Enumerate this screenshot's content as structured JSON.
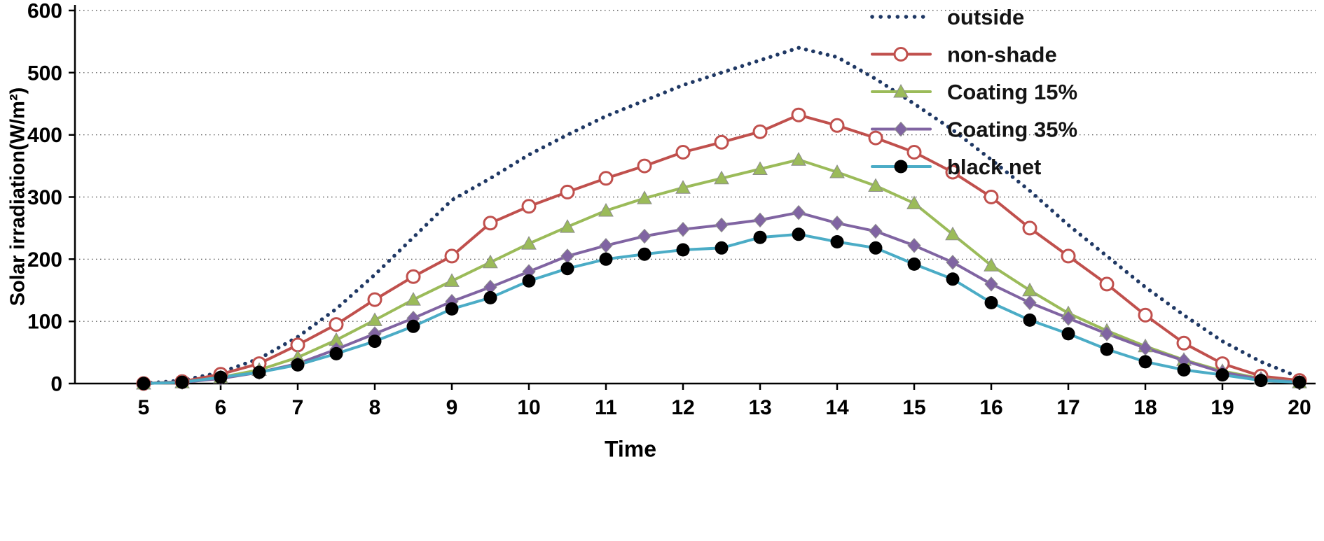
{
  "chart_data": {
    "type": "line",
    "title": "",
    "xlabel": "Time",
    "ylabel": "Solar irradiation(W/m²)",
    "xlim": [
      5,
      20
    ],
    "ylim": [
      0,
      600
    ],
    "x_ticks": [
      5,
      6,
      7,
      8,
      9,
      10,
      11,
      12,
      13,
      14,
      15,
      16,
      17,
      18,
      19,
      20
    ],
    "y_ticks": [
      0,
      100,
      200,
      300,
      400,
      500,
      600
    ],
    "grid": "horizontal-dotted",
    "legend_position": "top-right",
    "x": [
      5,
      5.5,
      6,
      6.5,
      7,
      7.5,
      8,
      8.5,
      9,
      9.5,
      10,
      10.5,
      11,
      11.5,
      12,
      12.5,
      13,
      13.5,
      14,
      14.5,
      15,
      15.5,
      16,
      16.5,
      17,
      17.5,
      18,
      18.5,
      19,
      19.5,
      20
    ],
    "series": [
      {
        "name": "outside",
        "slug": "outside",
        "color": "#1F3864",
        "line_style": "dotted",
        "marker": "none",
        "values": [
          0,
          5,
          18,
          40,
          75,
          120,
          175,
          235,
          295,
          330,
          368,
          400,
          430,
          455,
          480,
          500,
          520,
          540,
          525,
          490,
          450,
          408,
          360,
          310,
          255,
          205,
          155,
          110,
          68,
          35,
          10
        ]
      },
      {
        "name": "non-shade",
        "slug": "non-shade",
        "color": "#C0504D",
        "line_style": "solid",
        "marker": "open-circle",
        "values": [
          0,
          3,
          15,
          32,
          62,
          95,
          135,
          172,
          205,
          258,
          285,
          308,
          330,
          350,
          372,
          388,
          405,
          432,
          415,
          395,
          372,
          340,
          300,
          250,
          205,
          160,
          110,
          65,
          32,
          12,
          5
        ]
      },
      {
        "name": "Coating 15%",
        "slug": "coating-15",
        "color": "#9BBB59",
        "line_style": "solid",
        "marker": "triangle",
        "values": [
          0,
          2,
          10,
          22,
          42,
          70,
          102,
          135,
          165,
          195,
          225,
          252,
          278,
          298,
          315,
          330,
          345,
          360,
          340,
          318,
          290,
          240,
          190,
          150,
          113,
          85,
          60,
          38,
          20,
          8,
          2
        ]
      },
      {
        "name": "Coating 35%",
        "slug": "coating-35",
        "color": "#8064A2",
        "line_style": "solid",
        "marker": "diamond",
        "values": [
          0,
          2,
          8,
          18,
          32,
          55,
          80,
          105,
          132,
          155,
          180,
          205,
          222,
          237,
          248,
          255,
          263,
          275,
          258,
          245,
          222,
          195,
          160,
          130,
          105,
          80,
          57,
          37,
          18,
          7,
          2
        ]
      },
      {
        "name": "black net",
        "slug": "black-net",
        "color": "#4BACC6",
        "line_style": "solid",
        "marker": "filled-circle",
        "marker_color": "#000000",
        "values": [
          0,
          2,
          10,
          18,
          30,
          48,
          68,
          92,
          120,
          138,
          165,
          185,
          200,
          208,
          215,
          218,
          235,
          240,
          228,
          218,
          192,
          168,
          130,
          102,
          80,
          55,
          35,
          22,
          14,
          5,
          2
        ]
      }
    ]
  }
}
